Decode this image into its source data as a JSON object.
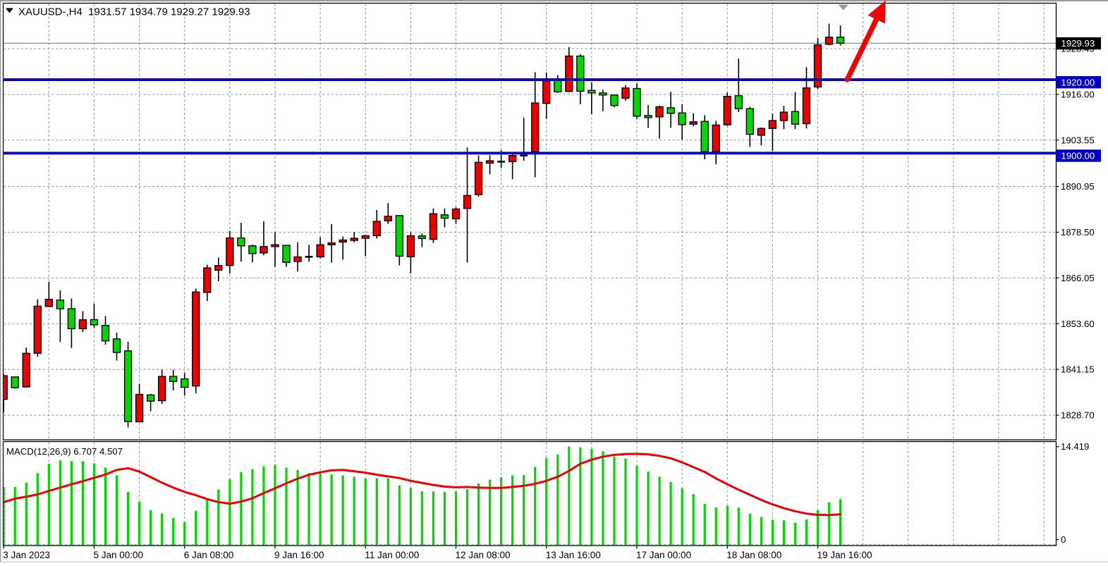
{
  "title_bar": {
    "symbol_dropdown_icon": "triangle-down",
    "text": "XAUUSD-,H4  1931.57 1934.79 1929.27 1929.93",
    "symbol": "XAUUSD-",
    "period": "H4",
    "open": "1931.57",
    "high": "1934.79",
    "low": "1929.27",
    "close": "1929.93"
  },
  "chart_data": {
    "type": "candlestick",
    "symbol": "XAUUSD-",
    "timeframe": "H4",
    "grid": true,
    "colors": {
      "bull": "#ee0000",
      "bear": "#00d800",
      "doji": "#000000",
      "wick": "#000000",
      "grid": "#8ca0b6",
      "level_line": "#0000c8",
      "current_price_line": "#808080",
      "macd_histogram": "#00d800",
      "macd_signal": "#ee0000",
      "arrow": "#ee0202",
      "axis_text": "#000000",
      "box_text": "#ffffff",
      "current_box_bg": "#000000",
      "level_box_bg": "#0000c8"
    },
    "price_axis": {
      "labels": [
        1928.45,
        1916.0,
        1903.55,
        1890.95,
        1878.5,
        1866.05,
        1853.6,
        1841.15,
        1828.7
      ],
      "range_top": 1940.73,
      "range_bottom": 1821.99,
      "current_price": 1929.93,
      "level_boxes": [
        1920.0,
        1900.0
      ]
    },
    "time_axis": {
      "labels": [
        {
          "bar": 0,
          "text": "3 Jan 2023"
        },
        {
          "bar": 8,
          "text": "5 Jan 00:00"
        },
        {
          "bar": 16,
          "text": "6 Jan 08:00"
        },
        {
          "bar": 24,
          "text": "9 Jan 16:00"
        },
        {
          "bar": 32,
          "text": "11 Jan 00:00"
        },
        {
          "bar": 40,
          "text": "12 Jan 08:00"
        },
        {
          "bar": 48,
          "text": "13 Jan 16:00"
        },
        {
          "bar": 56,
          "text": "17 Jan 00:00"
        },
        {
          "bar": 64,
          "text": "18 Jan 08:00"
        },
        {
          "bar": 72,
          "text": "19 Jan 16:00"
        }
      ],
      "bars_per_gridline": 4
    },
    "horizontal_levels": [
      1920.0,
      1900.0
    ],
    "candles": [
      [
        1833.0,
        1839.83,
        1829.47,
        1839.44
      ],
      [
        1839.12,
        1839.27,
        1835.93,
        1836.18
      ],
      [
        1836.39,
        1847.08,
        1836.18,
        1845.54
      ],
      [
        1845.54,
        1860.24,
        1844.66,
        1858.38
      ],
      [
        1858.28,
        1864.96,
        1858.13,
        1860.24
      ],
      [
        1860.03,
        1862.69,
        1848.61,
        1857.67
      ],
      [
        1857.67,
        1860.43,
        1846.98,
        1852.22
      ],
      [
        1852.22,
        1856.99,
        1851.34,
        1854.67
      ],
      [
        1854.71,
        1859.07,
        1852.51,
        1853.29
      ],
      [
        1853.12,
        1855.65,
        1847.88,
        1848.92
      ],
      [
        1849.46,
        1851.18,
        1843.55,
        1845.77
      ],
      [
        1846.19,
        1848.71,
        1825.34,
        1826.97
      ],
      [
        1826.88,
        1837.26,
        1826.78,
        1834.36
      ],
      [
        1834.21,
        1834.51,
        1829.77,
        1832.52
      ],
      [
        1832.63,
        1841.03,
        1831.73,
        1839.25
      ],
      [
        1839.25,
        1841.03,
        1835.41,
        1837.89
      ],
      [
        1838.58,
        1840.21,
        1833.98,
        1836.28
      ],
      [
        1836.64,
        1863.19,
        1834.65,
        1862.23
      ],
      [
        1862.1,
        1869.64,
        1859.78,
        1868.79
      ],
      [
        1868.16,
        1871.57,
        1865.13,
        1869.44
      ],
      [
        1869.44,
        1878.84,
        1867.26,
        1876.93
      ],
      [
        1876.93,
        1881.05,
        1870.48,
        1874.8
      ],
      [
        1874.8,
        1875.12,
        1870.29,
        1872.67
      ],
      [
        1872.86,
        1881.43,
        1872.21,
        1874.6
      ],
      [
        1874.57,
        1878.52,
        1869.06,
        1875.08
      ],
      [
        1874.93,
        1875.03,
        1869.12,
        1870.27
      ],
      [
        1870.5,
        1875.79,
        1867.78,
        1871.78
      ],
      [
        1871.81,
        1875.08,
        1870.44,
        1871.81
      ],
      [
        1871.78,
        1877.14,
        1871.42,
        1875.08
      ],
      [
        1875.08,
        1880.72,
        1870.21,
        1875.6
      ],
      [
        1875.79,
        1877.29,
        1871.02,
        1876.37
      ],
      [
        1876.27,
        1878.57,
        1875.72,
        1876.85
      ],
      [
        1876.85,
        1877.81,
        1871.96,
        1877.54
      ],
      [
        1877.54,
        1884.56,
        1876.79,
        1881.45
      ],
      [
        1881.57,
        1886.42,
        1880.74,
        1882.81
      ],
      [
        1883.01,
        1883.12,
        1869.46,
        1871.96
      ],
      [
        1871.82,
        1878.48,
        1867.3,
        1877.54
      ],
      [
        1877.48,
        1878.15,
        1874.43,
        1876.79
      ],
      [
        1876.54,
        1884.98,
        1875.54,
        1883.52
      ],
      [
        1883.22,
        1884.98,
        1879.8,
        1882.3
      ],
      [
        1882.14,
        1885.29,
        1880.8,
        1884.81
      ],
      [
        1884.96,
        1901.54,
        1870.23,
        1888.49
      ],
      [
        1888.74,
        1899.37,
        1888.19,
        1897.51
      ],
      [
        1897.28,
        1899.45,
        1894.27,
        1897.95
      ],
      [
        1897.7,
        1900.79,
        1895.95,
        1897.7
      ],
      [
        1897.72,
        1899.79,
        1892.94,
        1899.35
      ],
      [
        1899.37,
        1909.65,
        1897.95,
        1899.37
      ],
      [
        1900.44,
        1922.02,
        1893.44,
        1913.66
      ],
      [
        1913.55,
        1921.95,
        1909.34,
        1919.66
      ],
      [
        1919.78,
        1921.29,
        1916.4,
        1916.71
      ],
      [
        1916.79,
        1928.83,
        1916.6,
        1926.44
      ],
      [
        1926.44,
        1926.93,
        1913.35,
        1916.86
      ],
      [
        1917.09,
        1919.28,
        1910.61,
        1916.4
      ],
      [
        1916.4,
        1917.25,
        1911.43,
        1915.83
      ],
      [
        1915.83,
        1916.02,
        1912.51,
        1912.97
      ],
      [
        1914.95,
        1918.51,
        1914.29,
        1917.75
      ],
      [
        1917.61,
        1918.99,
        1909.31,
        1910.07
      ],
      [
        1910.26,
        1913.14,
        1906.91,
        1909.69
      ],
      [
        1909.88,
        1912.95,
        1903.95,
        1912.64
      ],
      [
        1912.37,
        1916.69,
        1906.91,
        1910.84
      ],
      [
        1910.96,
        1913.33,
        1903.69,
        1907.77
      ],
      [
        1907.89,
        1910.84,
        1907.29,
        1908.54
      ],
      [
        1908.65,
        1910.34,
        1898.33,
        1900.4
      ],
      [
        1900.4,
        1908.81,
        1896.95,
        1907.66
      ],
      [
        1907.73,
        1916.5,
        1907.44,
        1915.46
      ],
      [
        1915.64,
        1925.78,
        1911.17,
        1912.11
      ],
      [
        1912.11,
        1912.62,
        1901.71,
        1905.14
      ],
      [
        1904.89,
        1906.97,
        1902.13,
        1906.74
      ],
      [
        1906.74,
        1910.74,
        1900.58,
        1908.88
      ],
      [
        1908.88,
        1912.89,
        1906.52,
        1911.17
      ],
      [
        1911.34,
        1916.63,
        1906.6,
        1907.91
      ],
      [
        1908.02,
        1923.39,
        1906.74,
        1917.78
      ],
      [
        1918.01,
        1931.4,
        1917.4,
        1929.49
      ],
      [
        1929.64,
        1935.24,
        1929.35,
        1931.56
      ],
      [
        1931.57,
        1934.79,
        1929.27,
        1929.93
      ]
    ],
    "macd": {
      "label": "MACD(12,26,9) 6.707 4.507",
      "main_value": "6.707",
      "signal_value": "4.507",
      "scale_max_label": "14.419",
      "scale_min_label": "0",
      "range_top": 15.15,
      "range_bottom": 0,
      "histogram": [
        8.5,
        8.5,
        9.13,
        10.54,
        11.9,
        12.39,
        12.28,
        12.28,
        11.96,
        11.33,
        10.22,
        7.78,
        6.33,
        5.1,
        4.63,
        3.95,
        3.36,
        5.01,
        6.75,
        8.14,
        9.63,
        10.69,
        11.11,
        11.53,
        11.75,
        11.33,
        11.0,
        10.54,
        10.47,
        10.32,
        10.2,
        9.98,
        9.73,
        9.77,
        9.77,
        8.71,
        8.35,
        7.86,
        7.86,
        7.78,
        7.86,
        8.14,
        8.99,
        9.56,
        9.9,
        10.2,
        10.26,
        11.43,
        12.75,
        13.24,
        14.41,
        14.3,
        14.08,
        13.72,
        12.96,
        12.66,
        11.6,
        10.75,
        9.99,
        9.2,
        8.29,
        7.44,
        6.01,
        5.52,
        5.74,
        5.48,
        4.59,
        4.1,
        3.67,
        3.61,
        3.25,
        3.74,
        5.1,
        6.23,
        6.707
      ],
      "signal": [
        6.28,
        6.78,
        7.08,
        7.4,
        7.92,
        8.41,
        8.89,
        9.35,
        9.84,
        10.32,
        11.0,
        11.25,
        10.75,
        9.95,
        9.13,
        8.41,
        7.78,
        7.29,
        6.71,
        6.29,
        6.05,
        6.35,
        6.85,
        7.6,
        8.3,
        9.05,
        9.72,
        10.3,
        10.65,
        10.95,
        11.0,
        10.8,
        10.6,
        10.3,
        10.05,
        9.8,
        9.4,
        9.1,
        8.8,
        8.55,
        8.45,
        8.5,
        8.42,
        8.35,
        8.35,
        8.5,
        8.68,
        8.95,
        9.4,
        10.0,
        10.85,
        11.9,
        12.5,
        12.95,
        13.2,
        13.32,
        13.34,
        13.28,
        13.05,
        12.7,
        12.1,
        11.4,
        10.7,
        9.75,
        8.9,
        8.1,
        7.35,
        6.6,
        5.95,
        5.4,
        4.95,
        4.6,
        4.42,
        4.38,
        4.507
      ]
    },
    "arrow": {
      "type": "trend-arrow-up",
      "from_price": 1920.0,
      "from_bar": 74.6,
      "color": "#ee0202"
    }
  }
}
